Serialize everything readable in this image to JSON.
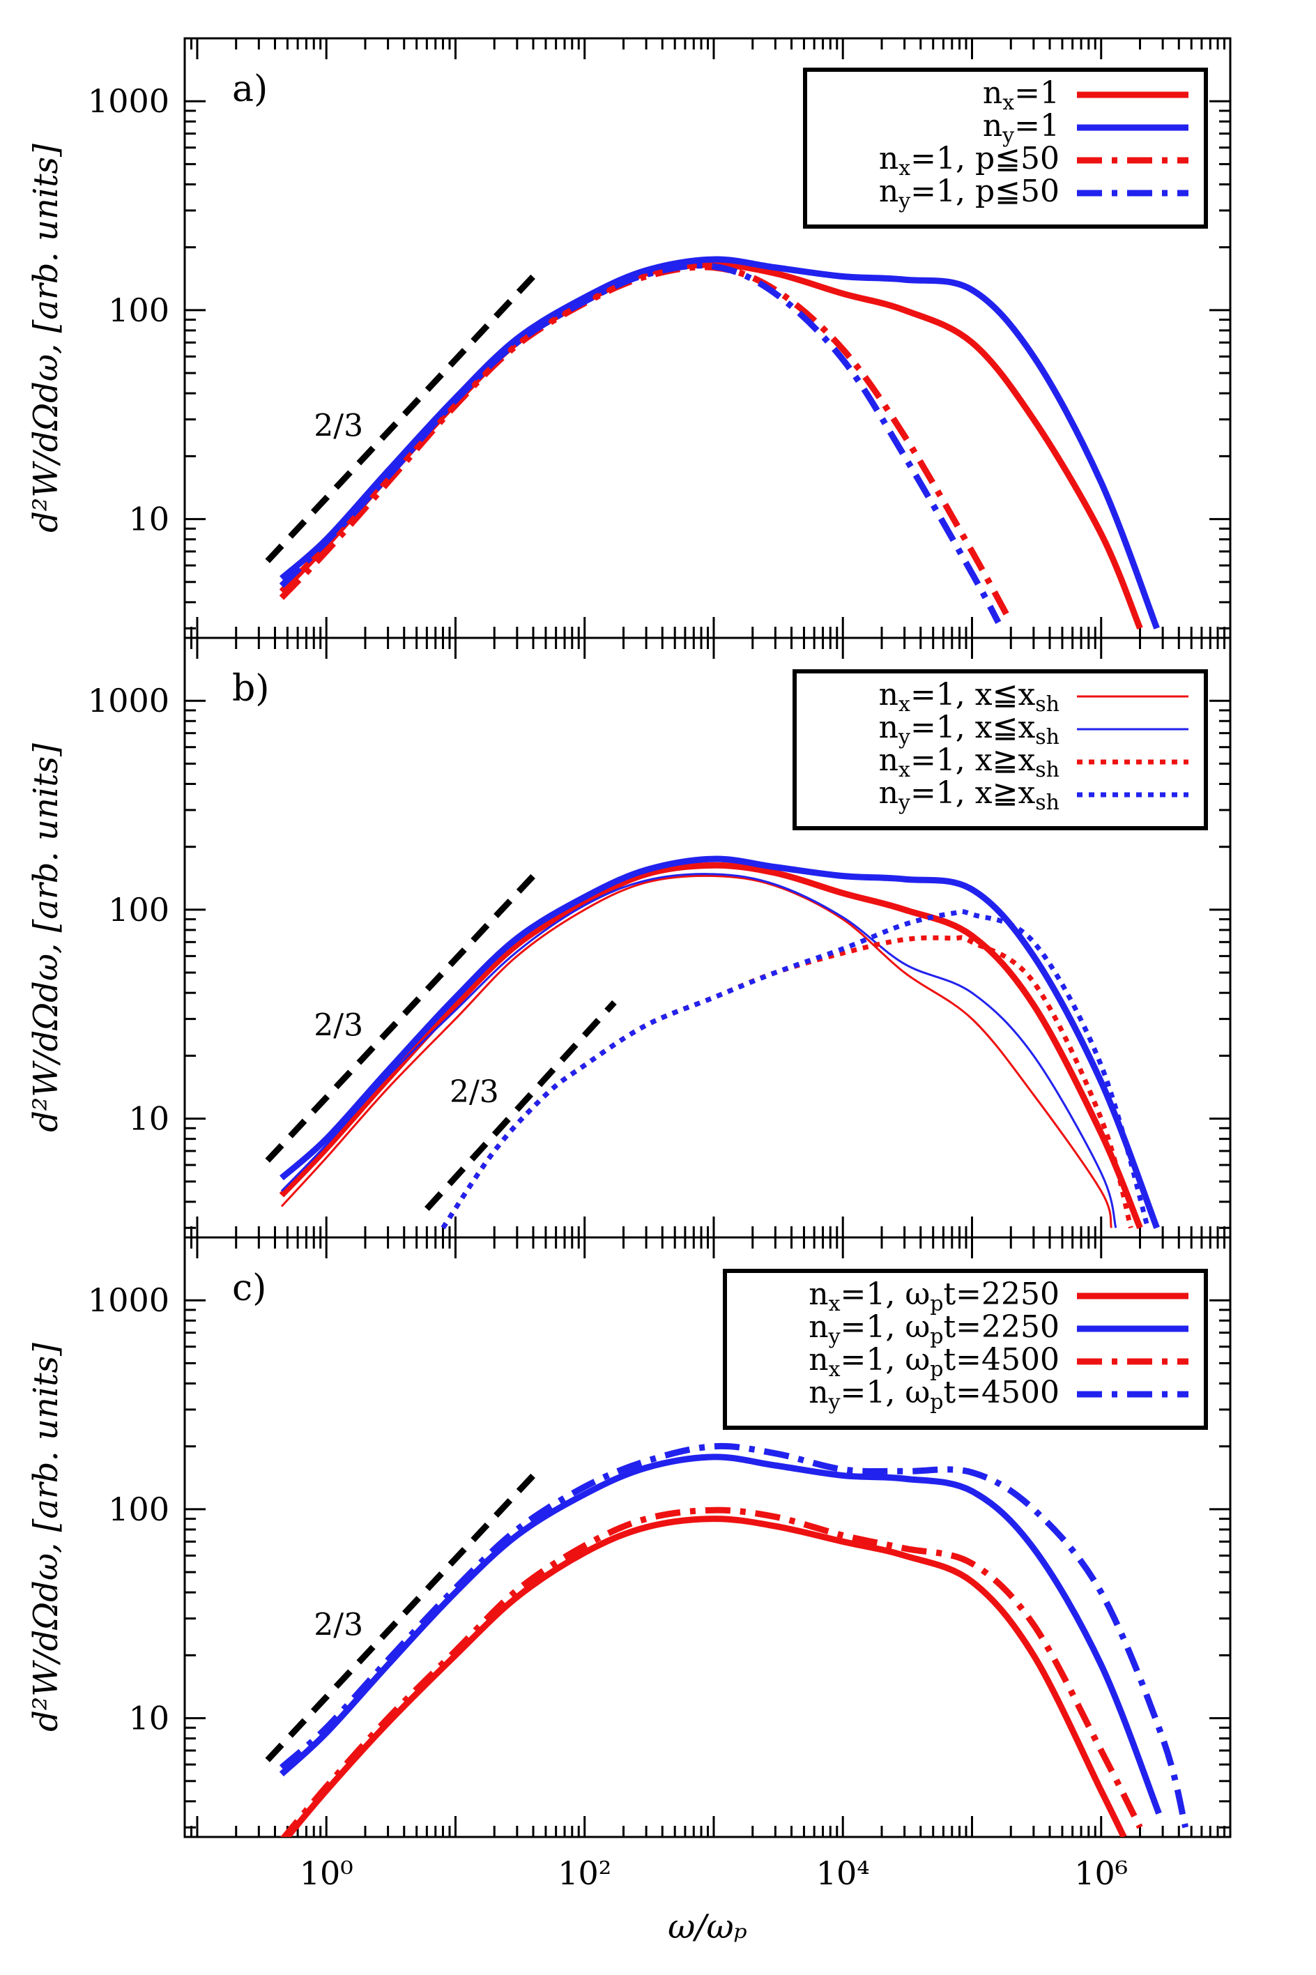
{
  "x_label": "ω/ωₚ",
  "y_label": "d²W/dΩdω, [arb. units]",
  "x_ticks": [
    {
      "value": 1,
      "label": "10⁰"
    },
    {
      "value": 100,
      "label": "10²"
    },
    {
      "value": 10000,
      "label": "10⁴"
    },
    {
      "value": 1000000,
      "label": "10⁶"
    }
  ],
  "y_ticks": [
    {
      "value": 10,
      "label": "10"
    },
    {
      "value": 100,
      "label": "100"
    },
    {
      "value": 1000,
      "label": "1000"
    }
  ],
  "colors": {
    "red": "#ee1111",
    "blue": "#2222ee",
    "black": "#000000"
  },
  "chart_data": [
    {
      "type": "line",
      "panel_label": "a)",
      "xscale": "log",
      "yscale": "log",
      "xlim": [
        0.08,
        10000000
      ],
      "ylim": [
        2.7,
        2000
      ],
      "slope_label": "2/3",
      "slope_lines": [
        {
          "x": [
            0.35,
            40
          ],
          "y": [
            6.3,
            145
          ]
        }
      ],
      "slope_text_pos": {
        "x": 0.8,
        "y": 25
      },
      "legend_position": "top-right",
      "series": [
        {
          "name": "n_x=1",
          "sub": "x",
          "rest": "=1",
          "color": "red",
          "style": "solid",
          "width": 9,
          "x": [
            0.45,
            1,
            3,
            10,
            30,
            100,
            300,
            1000,
            3000,
            10000,
            30000,
            100000,
            300000,
            1000000,
            2000000
          ],
          "y": [
            4.5,
            7.5,
            16,
            36,
            70,
            110,
            150,
            165,
            150,
            120,
            100,
            70,
            30,
            8.5,
            3.0
          ]
        },
        {
          "name": "n_y=1",
          "sub": "y",
          "rest": "=1",
          "color": "blue",
          "style": "solid",
          "width": 9,
          "x": [
            0.45,
            1,
            3,
            10,
            30,
            100,
            300,
            1000,
            3000,
            10000,
            30000,
            100000,
            300000,
            1000000,
            2700000
          ],
          "y": [
            5.2,
            8,
            17,
            38,
            73,
            115,
            155,
            175,
            160,
            145,
            140,
            125,
            60,
            15,
            3.0
          ]
        },
        {
          "name": "n_x=1, p≦50",
          "sub": "x",
          "rest": "=1,  p≦50",
          "color": "red",
          "style": "dashdot",
          "width": 9,
          "x": [
            0.45,
            1,
            3,
            10,
            30,
            100,
            300,
            1000,
            3000,
            10000,
            30000,
            100000,
            200000
          ],
          "y": [
            4.2,
            7,
            15,
            35,
            68,
            108,
            145,
            160,
            125,
            65,
            25,
            7,
            3.2
          ]
        },
        {
          "name": "n_y=1, p≦50",
          "sub": "y",
          "rest": "=1,  p≦50",
          "color": "blue",
          "style": "dashdot",
          "width": 9,
          "x": [
            0.45,
            1,
            3,
            10,
            30,
            100,
            300,
            1000,
            3000,
            10000,
            30000,
            100000,
            160000
          ],
          "y": [
            4.8,
            7.8,
            16,
            37,
            70,
            110,
            148,
            162,
            120,
            58,
            20,
            5.5,
            3.2
          ]
        }
      ]
    },
    {
      "type": "line",
      "panel_label": "b)",
      "xscale": "log",
      "yscale": "log",
      "xlim": [
        0.08,
        10000000
      ],
      "ylim": [
        2.7,
        2000
      ],
      "slope_label": "2/3",
      "slope_lines": [
        {
          "x": [
            0.35,
            40
          ],
          "y": [
            6.3,
            145
          ]
        },
        {
          "x": [
            6,
            170
          ],
          "y": [
            3.7,
            36
          ]
        }
      ],
      "slope_text_pos": {
        "x": 0.8,
        "y": 25
      },
      "slope_text_pos2": {
        "x": 9,
        "y": 12
      },
      "legend_position": "top-right",
      "series": [
        {
          "name": "n_x=1, x≦x_sh",
          "sub": "x",
          "rest": "=1,  x≦x",
          "sub2": "sh",
          "color": "red",
          "style": "solid",
          "width": 3,
          "x": [
            0.45,
            1,
            3,
            10,
            30,
            100,
            300,
            1000,
            3000,
            10000,
            30000,
            100000,
            300000,
            1000000,
            1200000
          ],
          "y": [
            3.8,
            6.5,
            14,
            30,
            60,
            100,
            135,
            145,
            130,
            90,
            50,
            30,
            13,
            4.5,
            3.0
          ]
        },
        {
          "name": "n_y=1, x≦x_sh",
          "sub": "y",
          "rest": "=1,  x≦x",
          "sub2": "sh",
          "color": "blue",
          "style": "solid",
          "width": 3,
          "x": [
            0.45,
            1,
            3,
            10,
            30,
            100,
            300,
            1000,
            3000,
            10000,
            30000,
            100000,
            300000,
            1000000,
            1300000
          ],
          "y": [
            4.5,
            7.5,
            16,
            33,
            63,
            105,
            138,
            148,
            132,
            92,
            55,
            40,
            20,
            5.5,
            3.0
          ]
        },
        {
          "name": "n_x=1, x≧x_sh",
          "sub": "x",
          "rest": "=1,  x≧x",
          "sub2": "sh",
          "color": "red",
          "style": "dotted",
          "width": 7,
          "x": [
            8,
            20,
            50,
            100,
            300,
            1000,
            3000,
            10000,
            30000,
            70000,
            100000,
            300000,
            1000000,
            1700000
          ],
          "y": [
            3.0,
            7,
            13,
            18,
            28,
            38,
            50,
            62,
            72,
            73,
            70,
            45,
            10,
            3.0
          ]
        },
        {
          "name": "n_y=1, x≧x_sh",
          "sub": "y",
          "rest": "=1,  x≧x",
          "sub2": "sh",
          "color": "blue",
          "style": "dotted",
          "width": 7,
          "x": [
            8,
            20,
            50,
            100,
            300,
            1000,
            3000,
            10000,
            30000,
            70000,
            100000,
            300000,
            1000000,
            2300000
          ],
          "y": [
            3.0,
            7,
            13,
            18,
            28,
            38,
            50,
            65,
            85,
            96,
            95,
            70,
            18,
            3.0
          ]
        },
        {
          "name": "n_x=1 total",
          "color": "red",
          "style": "solid",
          "width": 9,
          "legend": false,
          "x": [
            0.45,
            1,
            3,
            10,
            30,
            100,
            300,
            1000,
            3000,
            10000,
            30000,
            100000,
            300000,
            1000000,
            2000000
          ],
          "y": [
            4.3,
            7.2,
            15.5,
            35,
            68,
            108,
            148,
            163,
            150,
            120,
            100,
            75,
            35,
            8.5,
            3.0
          ]
        },
        {
          "name": "n_y=1 total",
          "color": "blue",
          "style": "solid",
          "width": 9,
          "legend": false,
          "x": [
            0.45,
            1,
            3,
            10,
            30,
            100,
            300,
            1000,
            3000,
            10000,
            30000,
            100000,
            300000,
            1000000,
            2700000
          ],
          "y": [
            5.2,
            8,
            17,
            38,
            73,
            115,
            155,
            175,
            160,
            145,
            140,
            125,
            60,
            15,
            3.0
          ]
        }
      ]
    },
    {
      "type": "line",
      "panel_label": "c)",
      "xscale": "log",
      "yscale": "log",
      "xlim": [
        0.08,
        10000000
      ],
      "ylim": [
        2.7,
        2000
      ],
      "slope_label": "2/3",
      "slope_lines": [
        {
          "x": [
            0.35,
            40
          ],
          "y": [
            6.3,
            145
          ]
        }
      ],
      "slope_text_pos": {
        "x": 0.8,
        "y": 25
      },
      "legend_position": "top-right",
      "series": [
        {
          "name": "n_x=1, ω_pt=2250",
          "sub": "x",
          "rest": "=1,  ω",
          "sub2": "p",
          "rest2": "t=2250",
          "color": "red",
          "style": "solid",
          "width": 9,
          "x": [
            0.45,
            1,
            3,
            10,
            30,
            100,
            300,
            1000,
            3000,
            10000,
            30000,
            100000,
            300000,
            1000000,
            1500000
          ],
          "y": [
            2.5,
            4.5,
            9.5,
            20,
            38,
            62,
            82,
            90,
            83,
            70,
            60,
            45,
            20,
            4.5,
            2.7
          ]
        },
        {
          "name": "n_y=1, ω_pt=2250",
          "sub": "y",
          "rest": "=1,  ω",
          "sub2": "p",
          "rest2": "t=2250",
          "color": "blue",
          "style": "solid",
          "width": 9,
          "x": [
            0.45,
            1,
            3,
            10,
            30,
            100,
            300,
            1000,
            3000,
            10000,
            30000,
            100000,
            300000,
            1000000,
            2800000
          ],
          "y": [
            5.4,
            8.5,
            18,
            40,
            75,
            118,
            158,
            178,
            162,
            145,
            140,
            122,
            65,
            18,
            3.5
          ]
        },
        {
          "name": "n_x=1, ω_pt=4500",
          "sub": "x",
          "rest": "=1,  ω",
          "sub2": "p",
          "rest2": "t=4500",
          "color": "red",
          "style": "dashdot",
          "width": 9,
          "x": [
            0.45,
            1,
            3,
            10,
            30,
            100,
            300,
            1000,
            3000,
            10000,
            30000,
            100000,
            300000,
            1000000,
            2000000
          ],
          "y": [
            2.6,
            4.7,
            10,
            21,
            41,
            67,
            90,
            99,
            92,
            75,
            65,
            55,
            28,
            7,
            3.0
          ]
        },
        {
          "name": "n_y=1, ω_pt=4500",
          "sub": "y",
          "rest": "=1,  ω",
          "sub2": "p",
          "rest2": "t=4500",
          "color": "blue",
          "style": "dashdot",
          "width": 9,
          "x": [
            0.45,
            1,
            3,
            10,
            30,
            100,
            300,
            1000,
            3000,
            10000,
            30000,
            100000,
            300000,
            1000000,
            3000000,
            4500000
          ],
          "y": [
            5.8,
            9,
            19,
            42,
            80,
            128,
            170,
            200,
            185,
            155,
            152,
            150,
            100,
            40,
            8,
            3.0
          ]
        }
      ]
    }
  ]
}
